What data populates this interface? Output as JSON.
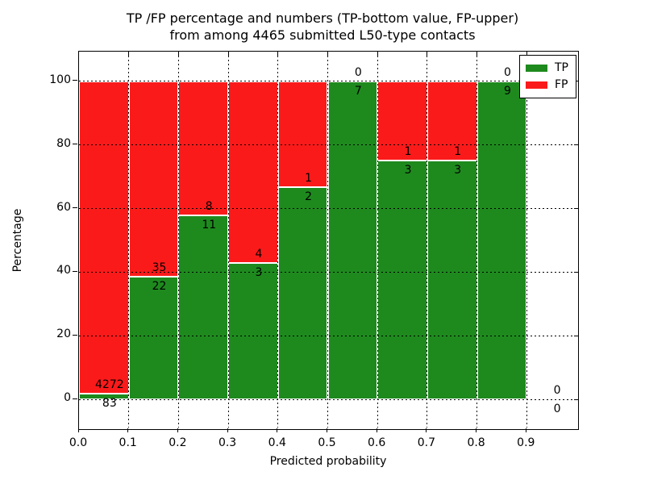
{
  "figure": {
    "title_line1": "TP /FP percentage and numbers (TP-bottom value, FP-upper)",
    "title_line2": "from among 4465 submitted L50-type contacts"
  },
  "chart_data": {
    "type": "bar",
    "stacked": true,
    "title": "TP /FP percentage and numbers (TP-bottom value, FP-upper) from among 4465 submitted L50-type contacts",
    "xlabel": "Predicted probability",
    "ylabel": "Percentage",
    "xlim": [
      0.0,
      1.0
    ],
    "ylim_display": [
      -8.8,
      109.3
    ],
    "xticks": [
      "0.0",
      "0.1",
      "0.2",
      "0.3",
      "0.4",
      "0.5",
      "0.6",
      "0.7",
      "0.8",
      "0.9"
    ],
    "yticks": [
      0,
      20,
      40,
      60,
      80,
      100
    ],
    "grid": "dotted",
    "legend_position": "upper right",
    "legend": [
      {
        "name": "TP",
        "color": "#1e8a1e"
      },
      {
        "name": "FP",
        "color": "#fb1a1a"
      }
    ],
    "bins": [
      {
        "range": [
          0.0,
          0.1
        ],
        "tp": 83,
        "fp": 4272
      },
      {
        "range": [
          0.1,
          0.2
        ],
        "tp": 22,
        "fp": 35
      },
      {
        "range": [
          0.2,
          0.3
        ],
        "tp": 11,
        "fp": 8
      },
      {
        "range": [
          0.3,
          0.4
        ],
        "tp": 3,
        "fp": 4
      },
      {
        "range": [
          0.4,
          0.5
        ],
        "tp": 2,
        "fp": 1
      },
      {
        "range": [
          0.5,
          0.6
        ],
        "tp": 7,
        "fp": 0
      },
      {
        "range": [
          0.6,
          0.7
        ],
        "tp": 3,
        "fp": 1
      },
      {
        "range": [
          0.7,
          0.8
        ],
        "tp": 3,
        "fp": 1
      },
      {
        "range": [
          0.8,
          0.9
        ],
        "tp": 9,
        "fp": 0
      },
      {
        "range": [
          0.9,
          1.0
        ],
        "tp": 0,
        "fp": 0
      }
    ],
    "total_contacts": 4465
  }
}
